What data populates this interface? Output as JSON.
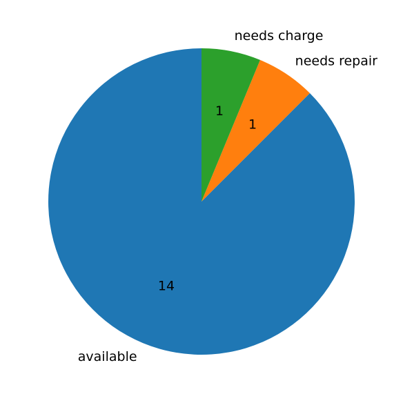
{
  "chart_data": {
    "type": "pie",
    "title": "",
    "slices": [
      {
        "label": "available",
        "value": 14,
        "color": "#1f77b4"
      },
      {
        "label": "needs repair",
        "value": 1,
        "color": "#ff7f0e"
      },
      {
        "label": "needs charge",
        "value": 1,
        "color": "#2ca02c"
      }
    ],
    "start_angle": "top",
    "direction": "clockwise"
  }
}
